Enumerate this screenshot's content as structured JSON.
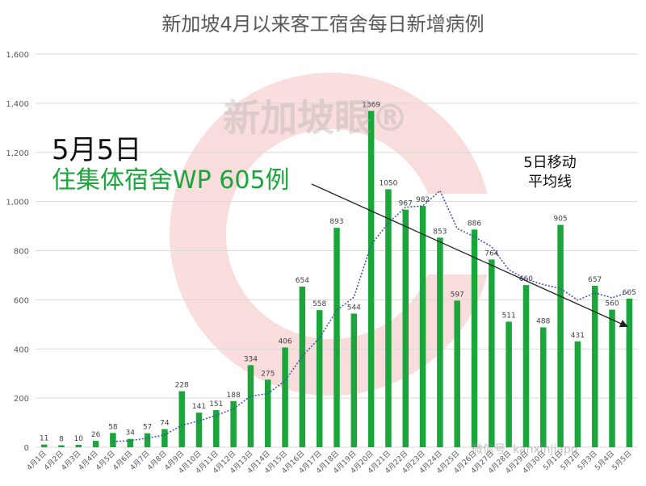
{
  "chart_data": {
    "type": "bar",
    "title": "新加坡4月以来客工宿舍每日新增病例",
    "categories": [
      "4月1日",
      "4月2日",
      "4月3日",
      "4月4日",
      "4月5日",
      "4月6日",
      "4月7日",
      "4月8日",
      "4月9日",
      "4月10日",
      "4月11日",
      "4月12日",
      "4月13日",
      "4月14日",
      "4月15日",
      "4月16日",
      "4月17日",
      "4月18日",
      "4月19日",
      "4月20日",
      "4月21日",
      "4月22日",
      "4月23日",
      "4月24日",
      "4月25日",
      "4月26日",
      "4月27日",
      "4月28日",
      "4月29日",
      "4月30日",
      "5月1日",
      "5月2日",
      "5月3日",
      "5月4日",
      "5月5日"
    ],
    "values": [
      11,
      8,
      10,
      26,
      58,
      34,
      57,
      74,
      228,
      141,
      151,
      188,
      334,
      275,
      406,
      654,
      558,
      893,
      544,
      1369,
      1050,
      967,
      982,
      853,
      597,
      886,
      764,
      511,
      660,
      488,
      905,
      431,
      657,
      560,
      605
    ],
    "moving_average_5d": [
      null,
      null,
      null,
      null,
      23,
      27,
      37,
      50,
      90,
      107,
      130,
      156,
      208,
      218,
      271,
      371,
      445,
      557,
      611,
      824,
      913,
      977,
      982,
      1044,
      890,
      857,
      816,
      722,
      684,
      662,
      646,
      599,
      628,
      608,
      632
    ],
    "ylim": [
      0,
      1600
    ],
    "yticks": [
      0,
      200,
      400,
      600,
      800,
      1000,
      1200,
      1400,
      1600
    ],
    "ytick_labels": [
      "0",
      "200",
      "400",
      "600",
      "800",
      "1,000",
      "1,200",
      "1,400",
      "1,600"
    ],
    "grid": true,
    "colors": {
      "bar": "#1aa63a",
      "moving_average": "#3d4fa8",
      "trend_arrow": "#222222",
      "title": "#595959"
    }
  },
  "annotations": {
    "date_label": "5月5日",
    "wp_label": "住集体宿舍WP 605例",
    "ma_line1": "5日移动",
    "ma_line2": "平均线"
  },
  "watermark": {
    "text": "新加坡眼®",
    "wechat": "微信号: kanxinjiapo"
  }
}
